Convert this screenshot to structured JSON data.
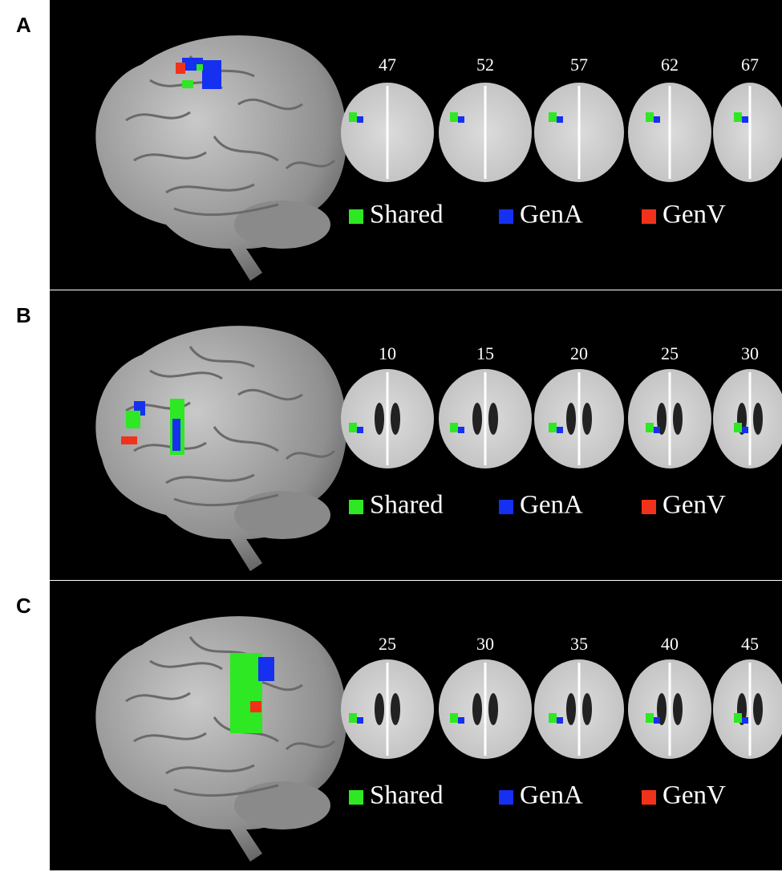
{
  "panels": [
    {
      "label": "A",
      "slices": [
        "47",
        "52",
        "57",
        "62",
        "67"
      ]
    },
    {
      "label": "B",
      "slices": [
        "10",
        "15",
        "20",
        "25",
        "30"
      ]
    },
    {
      "label": "C",
      "slices": [
        "25",
        "30",
        "35",
        "40",
        "45"
      ]
    }
  ],
  "legend": [
    {
      "name": "Shared",
      "color": "#2ee823"
    },
    {
      "name": "GenA",
      "color": "#1530f0"
    },
    {
      "name": "GenV",
      "color": "#f0321a"
    }
  ]
}
